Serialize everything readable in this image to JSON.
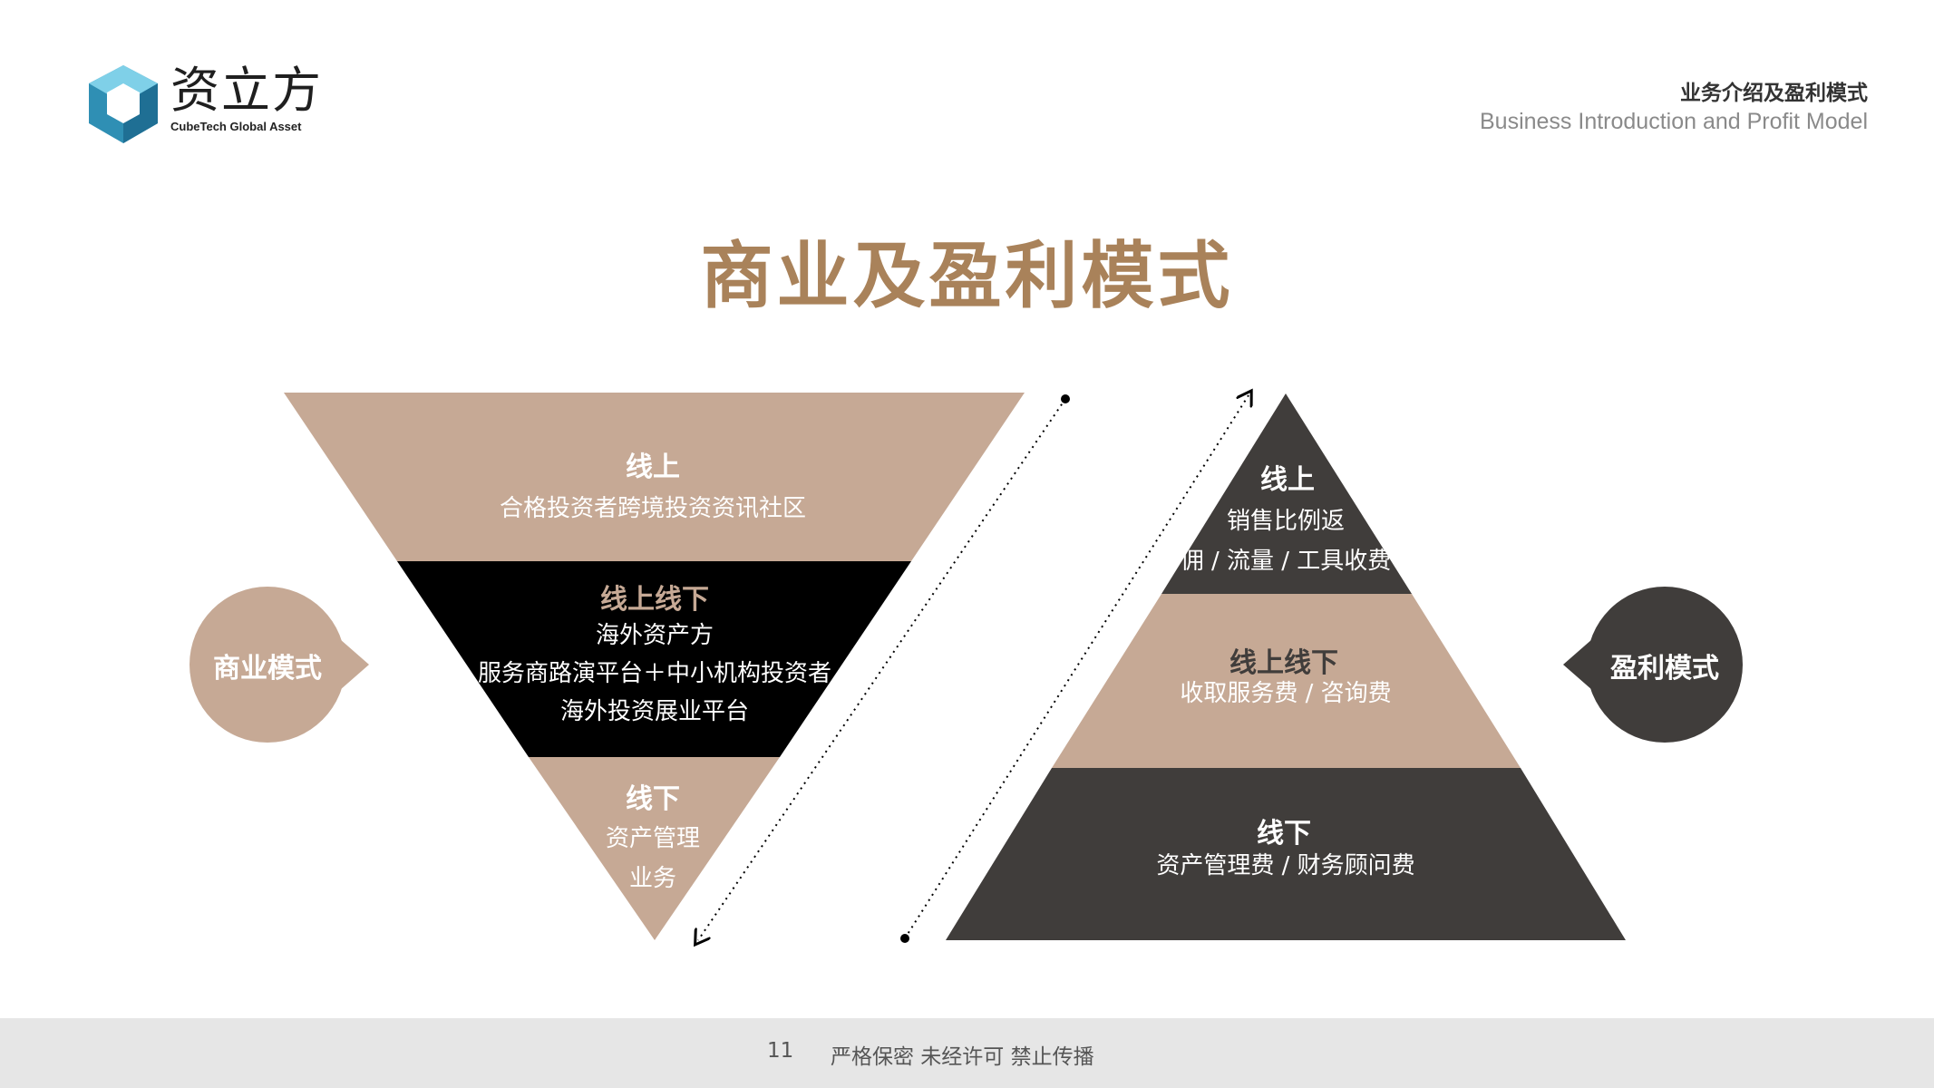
{
  "logo": {
    "name_cn": "资立方",
    "name_en": "CubeTech Global Asset"
  },
  "header": {
    "title_cn": "业务介绍及盈利模式",
    "title_en": "Business Introduction and Profit Model"
  },
  "title": "商业及盈利模式",
  "left": {
    "badge": "商业模式",
    "online": {
      "title": "线上",
      "lines": [
        "合格投资者跨境投资资讯社区"
      ]
    },
    "o2o": {
      "title": "线上线下",
      "lines": [
        "海外资产方",
        "服务商路演平台＋中小机构投资者",
        "海外投资展业平台"
      ]
    },
    "offline": {
      "title": "线下",
      "lines": [
        "资产管理",
        "业务"
      ]
    }
  },
  "right": {
    "badge": "盈利模式",
    "online": {
      "title": "线上",
      "lines": [
        "销售比例返",
        "佣 / 流量 / 工具收费"
      ]
    },
    "o2o": {
      "title": "线上线下",
      "lines": [
        "收取服务费 / 咨询费"
      ]
    },
    "offline": {
      "title": "线下",
      "lines": [
        "资产管理费 / 财务顾问费"
      ]
    }
  },
  "colors": {
    "tan": "#c6a995",
    "black": "#000000",
    "dark": "#403d3b",
    "gold": "#a9825a",
    "white": "#ffffff"
  },
  "footer": {
    "page": "11",
    "note": "严格保密 未经许可 禁止传播"
  }
}
